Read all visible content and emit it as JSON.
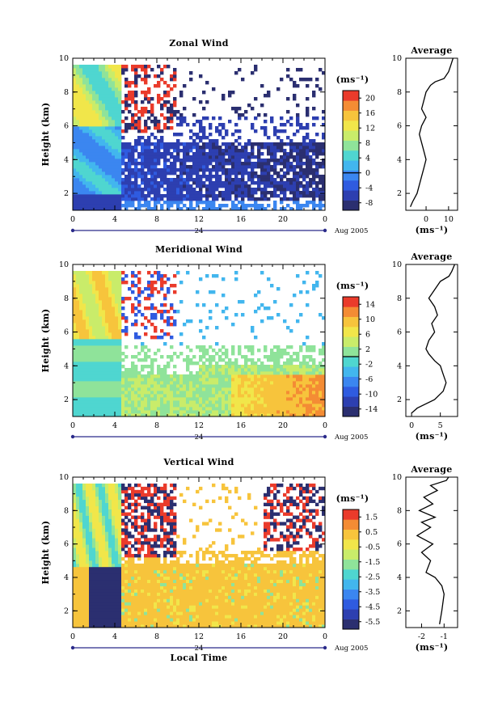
{
  "colors": {
    "scale": [
      "#2b2f70",
      "#2d3fb0",
      "#2f5be0",
      "#3b86f0",
      "#42b6ee",
      "#4fd6d0",
      "#8fe39a",
      "#c9ec6a",
      "#f1e64a",
      "#f7c43c",
      "#f48c34",
      "#ea3b2b"
    ],
    "axis": "#000000",
    "track": "#2a2a8a"
  },
  "panels": [
    {
      "title": "Zonal Wind",
      "ylabel": "Height (km)",
      "unit": "(ms⁻¹)",
      "date_label": "Aug 2005",
      "day_label": "24",
      "xticks": [
        "0",
        "4",
        "8",
        "12",
        "16",
        "20",
        "0"
      ],
      "yticks": [
        "2",
        "4",
        "6",
        "8",
        "10"
      ],
      "colorbar_ticks": [
        "20",
        "16",
        "12",
        "8",
        "4",
        "0",
        "-4",
        "-8"
      ],
      "colorbar_range": [
        -10,
        22
      ],
      "average_title": "Average",
      "average_xticks": [
        "0",
        "10"
      ],
      "average_unit": "(ms⁻¹)",
      "average_yticks": [
        "2",
        "4",
        "6",
        "8",
        "10"
      ]
    },
    {
      "title": "Meridional Wind",
      "ylabel": "Height (km)",
      "unit": "(ms⁻¹)",
      "date_label": "Aug 2005",
      "day_label": "24",
      "xticks": [
        "0",
        "4",
        "8",
        "12",
        "16",
        "20",
        "0"
      ],
      "yticks": [
        "2",
        "4",
        "6",
        "8",
        "10"
      ],
      "colorbar_ticks": [
        "14",
        "10",
        "6",
        "2",
        "-2",
        "-6",
        "-10",
        "-14"
      ],
      "colorbar_range": [
        -16,
        16
      ],
      "average_title": "Average",
      "average_xticks": [
        "0",
        "5"
      ],
      "average_unit": "(ms⁻¹)",
      "average_yticks": [
        "2",
        "4",
        "6",
        "8",
        "10"
      ]
    },
    {
      "title": "Vertical Wind",
      "ylabel": "Height (km)",
      "unit": "(ms⁻¹)",
      "date_label": "Aug 2005",
      "day_label": "24",
      "xticks": [
        "0",
        "4",
        "8",
        "12",
        "16",
        "20",
        "0"
      ],
      "yticks": [
        "2",
        "4",
        "6",
        "8",
        "10"
      ],
      "colorbar_ticks": [
        "1.5",
        "0.5",
        "-0.5",
        "-1.5",
        "-2.5",
        "-3.5",
        "-4.5",
        "-5.5"
      ],
      "colorbar_range": [
        -6,
        2
      ],
      "average_title": "Average",
      "average_xticks": [
        "-2",
        "-1"
      ],
      "average_unit": "(ms⁻¹)",
      "average_yticks": [
        "2",
        "4",
        "6",
        "8",
        "10"
      ],
      "xlabel": "Local Time"
    }
  ],
  "chart_data": [
    {
      "type": "heatmap",
      "title": "Zonal Wind",
      "xlabel": "",
      "ylabel": "Height (km)",
      "xlim": [
        0,
        24
      ],
      "ylim": [
        1,
        10
      ],
      "x_tick_labels": [
        "0",
        "4",
        "8",
        "12",
        "16",
        "20",
        "0"
      ],
      "colorbar_unit": "ms-1",
      "colorbar_ticks": [
        20,
        16,
        12,
        8,
        4,
        0,
        -4,
        -8
      ]
    },
    {
      "type": "line",
      "title": "Average",
      "xlabel": "(ms-1)",
      "ylim": [
        1,
        10
      ],
      "x_ticks": [
        0,
        10
      ],
      "series": [
        {
          "x": [
            -7,
            -6,
            -4,
            -3,
            -2,
            -1,
            0,
            -1,
            -2,
            -3,
            -2,
            0,
            -2,
            -1,
            0,
            1,
            2,
            4,
            8,
            10,
            11,
            12
          ],
          "y": [
            1.2,
            1.5,
            2,
            2.5,
            3,
            3.5,
            4,
            4.5,
            5,
            5.5,
            6,
            6.5,
            7,
            7.5,
            8,
            8.2,
            8.4,
            8.6,
            8.8,
            9.2,
            9.6,
            10
          ]
        }
      ]
    },
    {
      "type": "heatmap",
      "title": "Meridional Wind",
      "xlabel": "",
      "ylabel": "Height (km)",
      "xlim": [
        0,
        24
      ],
      "ylim": [
        1,
        10
      ],
      "x_tick_labels": [
        "0",
        "4",
        "8",
        "12",
        "16",
        "20",
        "0"
      ],
      "colorbar_unit": "ms-1",
      "colorbar_ticks": [
        14,
        10,
        6,
        2,
        -2,
        -6,
        -10,
        -14
      ]
    },
    {
      "type": "line",
      "title": "Average",
      "xlabel": "(ms-1)",
      "ylim": [
        1,
        10
      ],
      "x_ticks": [
        0,
        5
      ],
      "series": [
        {
          "x": [
            0,
            1,
            4,
            5.5,
            6,
            5.5,
            5,
            4,
            3,
            2.5,
            3,
            4,
            3.5,
            4.5,
            4,
            3,
            4,
            5,
            6.5,
            7,
            7.5
          ],
          "y": [
            1.2,
            1.5,
            2,
            2.5,
            3,
            3.5,
            4,
            4.3,
            4.7,
            5,
            5.5,
            6,
            6.5,
            7,
            7.5,
            8,
            8.5,
            9,
            9.3,
            9.6,
            10
          ]
        }
      ]
    },
    {
      "type": "heatmap",
      "title": "Vertical Wind",
      "xlabel": "Local Time",
      "ylabel": "Height (km)",
      "xlim": [
        0,
        24
      ],
      "ylim": [
        1,
        10
      ],
      "x_tick_labels": [
        "0",
        "4",
        "8",
        "12",
        "16",
        "20",
        "0"
      ],
      "colorbar_unit": "ms-1",
      "colorbar_ticks": [
        1.5,
        0.5,
        -0.5,
        -1.5,
        -2.5,
        -3.5,
        -4.5,
        -5.5
      ]
    },
    {
      "type": "line",
      "title": "Average",
      "xlabel": "(ms-1)",
      "ylim": [
        1,
        10
      ],
      "x_ticks": [
        -2,
        -1
      ],
      "series": [
        {
          "x": [
            -1.2,
            -1.1,
            -1.0,
            -1.1,
            -1.4,
            -1.8,
            -1.6,
            -2.0,
            -1.5,
            -2.2,
            -1.6,
            -2.0,
            -1.4,
            -2.1,
            -1.5,
            -1.9,
            -1.3,
            -1.6,
            -0.9,
            -0.8
          ],
          "y": [
            1.2,
            2,
            3,
            3.5,
            4,
            4.3,
            5,
            5.5,
            6,
            6.5,
            7,
            7.3,
            7.6,
            8,
            8.4,
            8.8,
            9.2,
            9.5,
            9.8,
            10
          ]
        }
      ]
    }
  ]
}
